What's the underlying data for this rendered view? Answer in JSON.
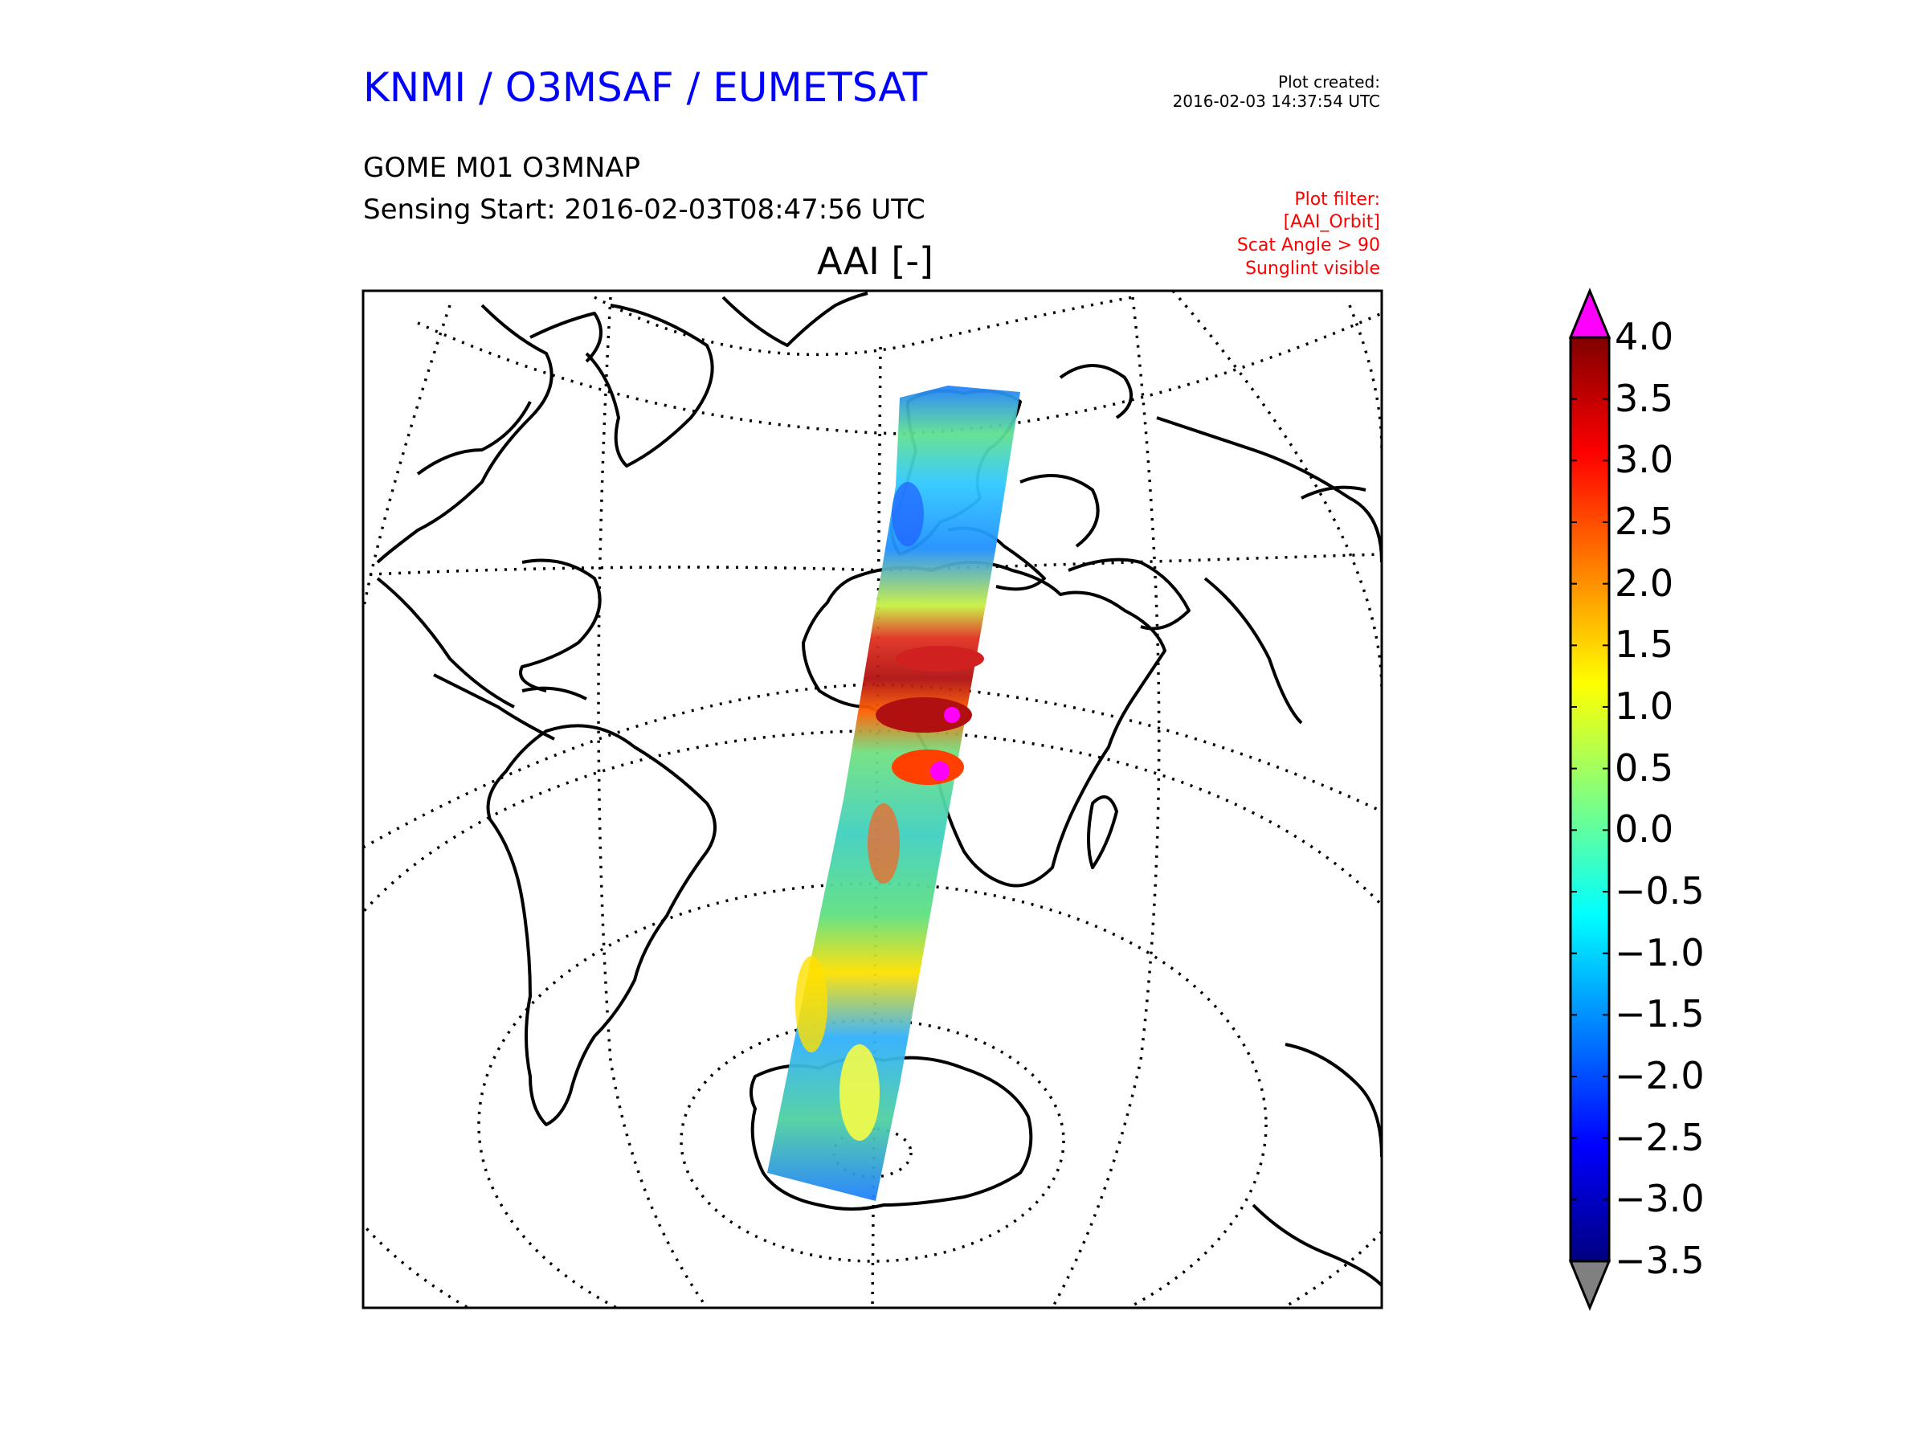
{
  "header": {
    "organization": "KNMI / O3MSAF / EUMETSAT",
    "plot_created_label": "Plot created:",
    "plot_created_time": "2016-02-03 14:37:54 UTC",
    "product": "GOME M01 O3MNAP",
    "sensing_start": "Sensing Start: 2016-02-03T08:47:56 UTC",
    "plot_title": "AAI [-]",
    "plot_filter": [
      "Plot filter:",
      "[AAI_Orbit]",
      "Scat Angle > 90",
      "Sunglint visible"
    ]
  },
  "map": {
    "projection": "orthographic",
    "graticule": "dotted",
    "coastlines": "black",
    "swath_colormap": "jet"
  },
  "colorbar": {
    "min": -3.5,
    "max": 4.0,
    "extend": "both",
    "under_color": "#808080",
    "over_color": "#ff00ff",
    "ticks": [
      "4.0",
      "3.5",
      "3.0",
      "2.5",
      "2.0",
      "1.5",
      "1.0",
      "0.5",
      "0.0",
      "−0.5",
      "−1.0",
      "−1.5",
      "−2.0",
      "−2.5",
      "−3.0",
      "−3.5"
    ],
    "colors": [
      "#000080",
      "#0000ff",
      "#0080ff",
      "#00ffff",
      "#80ff80",
      "#ffff00",
      "#ff8000",
      "#ff0000",
      "#800000"
    ]
  }
}
